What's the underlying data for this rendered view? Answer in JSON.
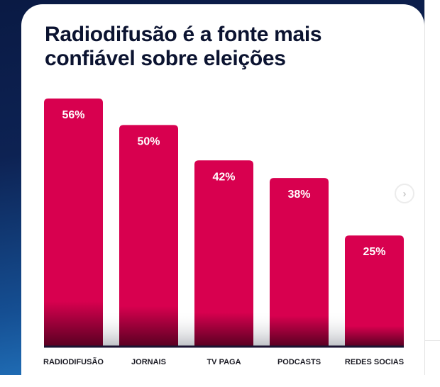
{
  "slide": {
    "title": "Radiodifusão é a fonte mais confiável sobre eleições",
    "next_icon": "›"
  },
  "colors": {
    "bar": "#d8004f",
    "bar_bottom": "#5a0022",
    "title": "#0b1330",
    "background_top": "#0a1a44",
    "background_bottom": "#2a8ad6"
  },
  "chart_data": {
    "type": "bar",
    "title": "Radiodifusão é a fonte mais confiável sobre eleições",
    "categories": [
      "RADIODIFUSÃO",
      "JORNAIS",
      "TV PAGA",
      "PODCASTS",
      "REDES SOCIAS"
    ],
    "values": [
      56,
      50,
      42,
      38,
      25
    ],
    "data_labels": [
      "56%",
      "50%",
      "42%",
      "38%",
      "25%"
    ],
    "unit": "%",
    "xlabel": "",
    "ylabel": "",
    "ylim": [
      0,
      60
    ],
    "grid": false,
    "legend": "none"
  }
}
